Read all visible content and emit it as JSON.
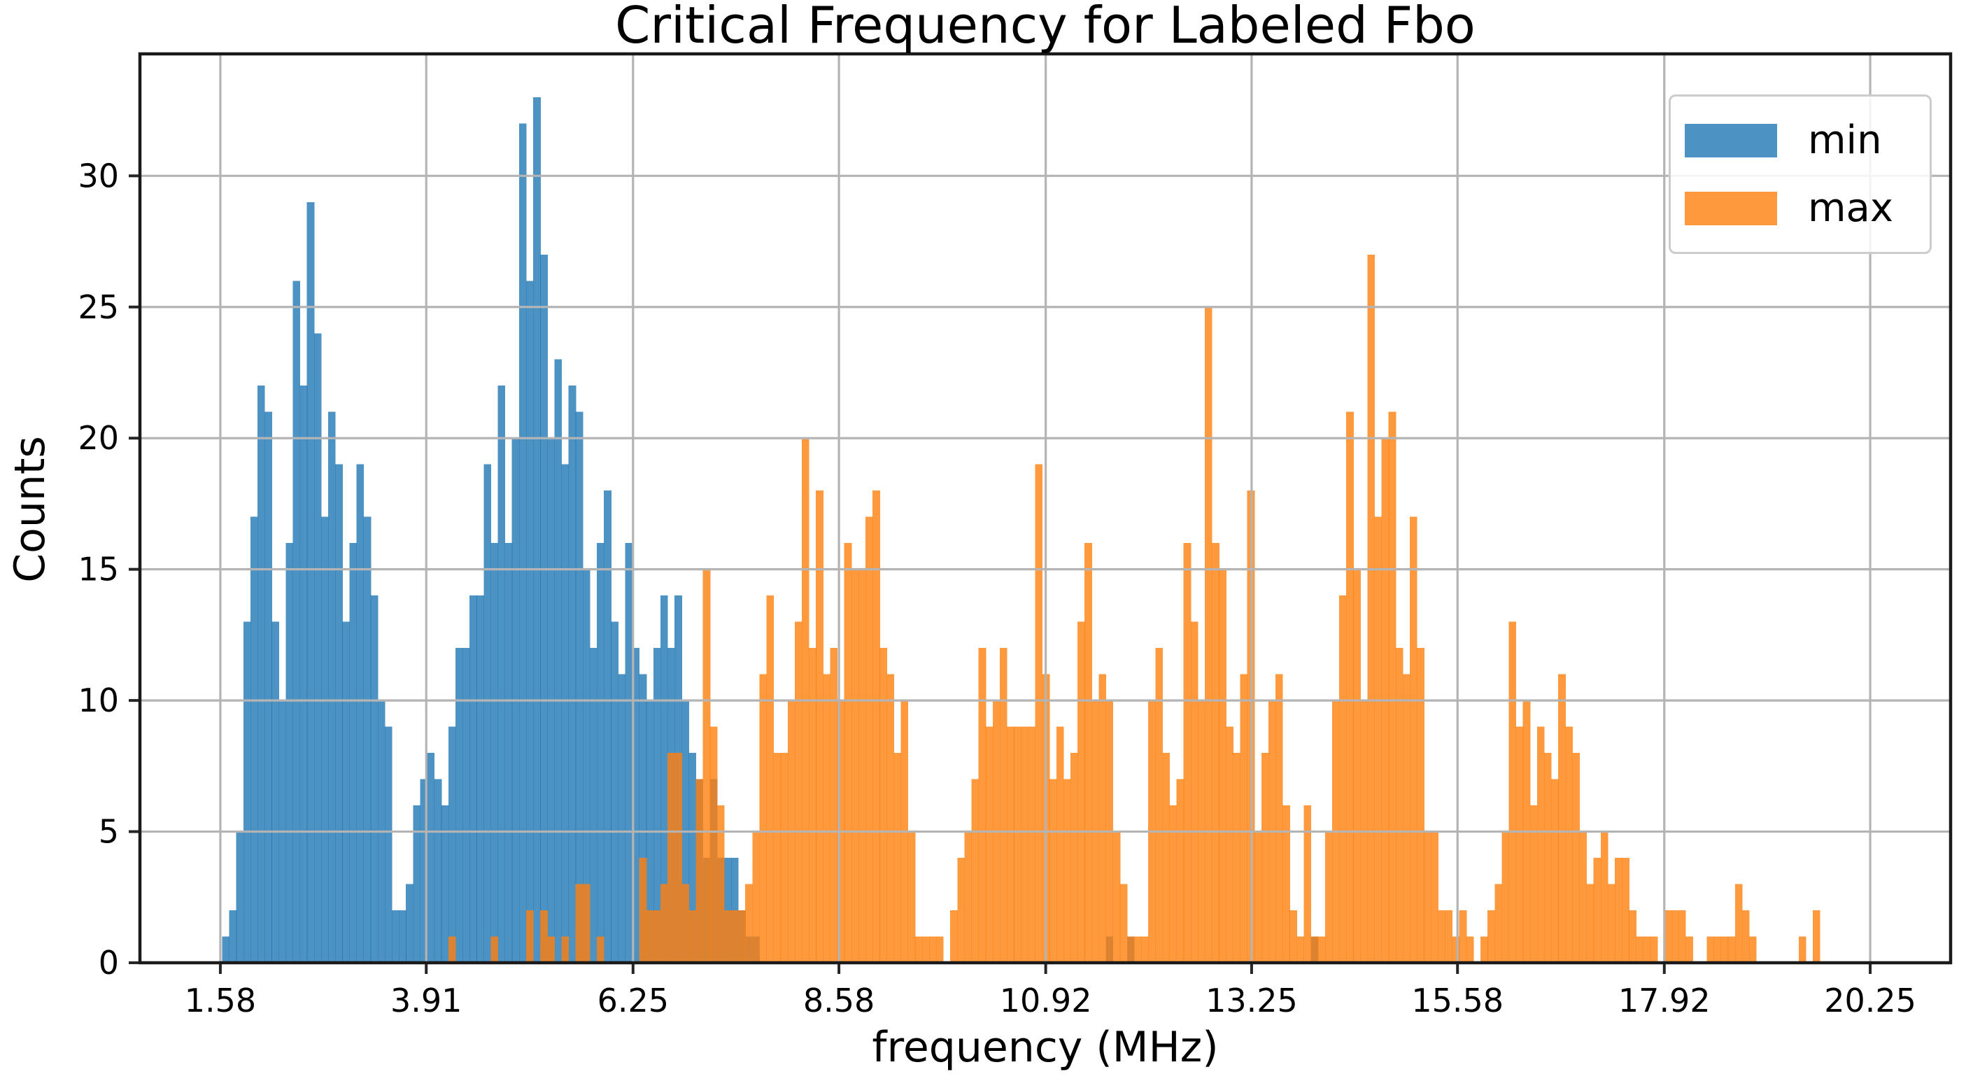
{
  "figure": {
    "background": "#ffffff"
  },
  "chart_data": {
    "type": "histogram",
    "title": "Critical Frequency for Labeled Fbo",
    "xlabel": "frequency (MHz)",
    "ylabel": "Counts",
    "xlim": [
      0.67,
      21.16
    ],
    "ylim": [
      0,
      34.65
    ],
    "xticks": [
      1.58,
      3.91,
      6.25,
      8.58,
      10.92,
      13.25,
      15.58,
      17.92,
      20.25
    ],
    "xtick_labels": [
      "1.58",
      "3.91",
      "6.25",
      "8.58",
      "10.92",
      "13.25",
      "15.58",
      "17.92",
      "20.25"
    ],
    "yticks": [
      0,
      5,
      10,
      15,
      20,
      25,
      30
    ],
    "ytick_labels": [
      "0",
      "5",
      "10",
      "15",
      "20",
      "25",
      "30"
    ],
    "grid": true,
    "grid_color": "#b4b4b4",
    "spine_color": "#1a1a1a",
    "tick_color": "#262626",
    "text_color": "#000000",
    "legend_position": "upper right",
    "bin_width": 0.08,
    "bar_alpha": 0.8,
    "series": [
      {
        "name": "min",
        "color": "#1f77b4",
        "runs": [
          {
            "start": 1.6,
            "counts": [
              1,
              2,
              5,
              13,
              17,
              22,
              21,
              13,
              10,
              16,
              26,
              22,
              29,
              24,
              17,
              21,
              19,
              13,
              16,
              19,
              17,
              14,
              10,
              9,
              2,
              2,
              3,
              6,
              7,
              8,
              7,
              6,
              9,
              12,
              12,
              14,
              14,
              19,
              16,
              22,
              16,
              20,
              32,
              26,
              33,
              27,
              20,
              23,
              19,
              22,
              21,
              15,
              12,
              16,
              18,
              13,
              11,
              16,
              12,
              11,
              10,
              12,
              14,
              12,
              14,
              10,
              8,
              7,
              4,
              7,
              4,
              4,
              4,
              2,
              1,
              1
            ]
          },
          {
            "start": 11.6,
            "counts": [
              1
            ]
          },
          {
            "start": 11.84,
            "counts": [
              1
            ]
          },
          {
            "start": 13.92,
            "counts": [
              1
            ]
          }
        ]
      },
      {
        "name": "max",
        "color": "#ff7f0e",
        "runs": [
          {
            "start": 4.16,
            "counts": [
              1
            ]
          },
          {
            "start": 4.64,
            "counts": [
              1
            ]
          },
          {
            "start": 5.04,
            "counts": [
              2,
              0,
              2,
              1,
              0,
              1,
              0,
              3,
              3,
              0,
              1
            ]
          },
          {
            "start": 6.32,
            "counts": [
              4,
              2,
              2,
              3,
              8,
              8,
              3,
              2,
              7,
              15,
              9,
              6,
              2,
              2,
              2,
              3,
              5,
              11,
              14,
              8,
              8,
              10,
              13,
              20,
              12,
              18,
              11,
              12,
              10,
              16,
              15,
              15,
              17,
              18,
              12,
              11,
              8,
              10,
              5,
              1,
              1,
              1,
              1,
              0,
              2,
              4,
              5,
              7,
              12,
              9,
              10,
              12,
              9,
              9,
              9,
              9,
              19,
              11,
              7,
              9,
              7,
              8,
              13,
              16,
              10,
              11,
              10,
              5,
              3,
              1,
              1,
              1,
              10,
              12,
              8,
              6,
              7,
              16,
              13,
              10,
              25,
              16,
              15,
              9,
              8,
              11,
              18,
              5,
              8,
              10,
              11,
              6,
              2,
              1,
              6,
              1,
              1,
              5,
              10,
              14,
              21,
              15,
              10,
              27,
              17,
              20,
              21,
              12,
              11,
              17,
              12,
              5,
              5,
              2,
              2,
              1,
              2,
              1,
              0,
              1,
              2,
              3,
              5,
              13,
              9,
              10,
              6,
              9,
              8,
              7,
              11,
              9,
              8,
              5,
              3,
              4,
              5,
              3,
              4,
              4,
              2,
              1,
              1,
              1,
              0,
              2,
              2,
              2,
              1,
              0,
              0,
              1,
              1,
              1,
              1,
              3,
              2,
              1,
              0,
              0,
              0,
              0,
              0,
              0,
              1,
              0,
              2
            ]
          }
        ]
      }
    ]
  }
}
